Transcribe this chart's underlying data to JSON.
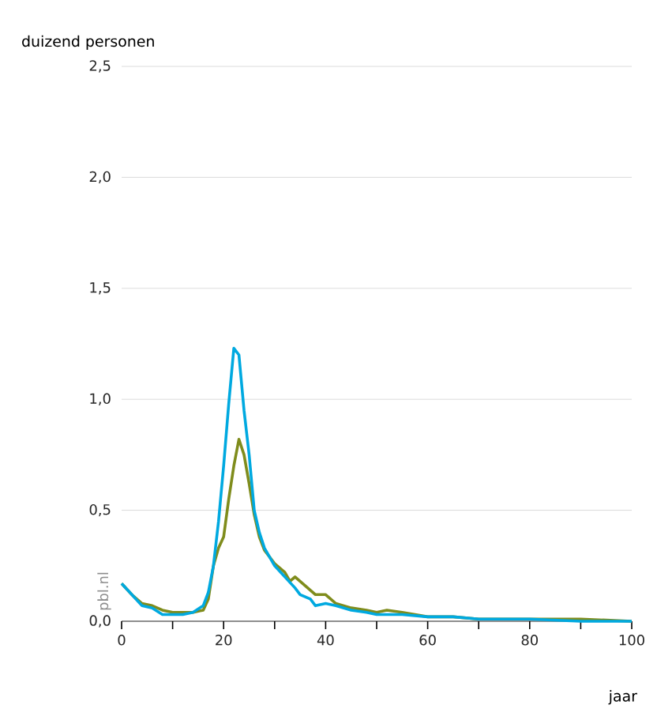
{
  "chart_data": {
    "type": "line",
    "ylabel": "duizend personen",
    "xlabel": "jaar",
    "annotations": [
      "pbl.nl"
    ],
    "xlim": [
      0,
      100
    ],
    "ylim": [
      0,
      2.5
    ],
    "xticks": [
      0,
      {
        "value": 10,
        "label": null
      },
      20,
      {
        "value": 30,
        "label": null
      },
      40,
      {
        "value": 50,
        "label": null
      },
      60,
      {
        "value": 70,
        "label": null
      },
      80,
      {
        "value": 90,
        "label": null
      },
      100
    ],
    "yticks": [
      {
        "value": 0,
        "label": "0,0"
      },
      {
        "value": 0.5,
        "label": "0,5"
      },
      {
        "value": 1,
        "label": "1,0"
      },
      {
        "value": 1.5,
        "label": "1,5"
      },
      {
        "value": 2,
        "label": "2,0"
      },
      {
        "value": 2.5,
        "label": "2,5"
      }
    ],
    "grid": "y",
    "marker": "none",
    "line_style": "solid",
    "series": [
      {
        "color": "#7f8c1c",
        "x": [
          0,
          2,
          4,
          6,
          8,
          10,
          12,
          14,
          16,
          17,
          18,
          19,
          20,
          21,
          22,
          23,
          24,
          25,
          26,
          27,
          28,
          30,
          32,
          33,
          34,
          36,
          38,
          40,
          42,
          45,
          48,
          50,
          52,
          55,
          60,
          65,
          70,
          80,
          90,
          100
        ],
        "values": [
          0.17,
          0.12,
          0.08,
          0.07,
          0.05,
          0.04,
          0.04,
          0.04,
          0.05,
          0.1,
          0.25,
          0.33,
          0.38,
          0.55,
          0.7,
          0.82,
          0.75,
          0.62,
          0.48,
          0.38,
          0.32,
          0.26,
          0.22,
          0.18,
          0.2,
          0.16,
          0.12,
          0.12,
          0.08,
          0.06,
          0.05,
          0.04,
          0.05,
          0.04,
          0.02,
          0.02,
          0.01,
          0.01,
          0.01,
          0.0
        ]
      },
      {
        "color": "#00a9e0",
        "x": [
          0,
          2,
          4,
          6,
          8,
          10,
          12,
          14,
          16,
          17,
          18,
          19,
          20,
          21,
          22,
          23,
          24,
          25,
          26,
          27,
          28,
          30,
          32,
          34,
          35,
          37,
          38,
          40,
          42,
          45,
          48,
          50,
          55,
          60,
          65,
          70,
          80,
          90,
          100
        ],
        "values": [
          0.17,
          0.12,
          0.07,
          0.06,
          0.03,
          0.03,
          0.03,
          0.04,
          0.07,
          0.13,
          0.25,
          0.45,
          0.7,
          0.98,
          1.23,
          1.2,
          0.95,
          0.75,
          0.5,
          0.4,
          0.33,
          0.25,
          0.2,
          0.15,
          0.12,
          0.1,
          0.07,
          0.08,
          0.07,
          0.05,
          0.04,
          0.03,
          0.03,
          0.02,
          0.02,
          0.01,
          0.01,
          0.0,
          0.0
        ]
      }
    ]
  }
}
